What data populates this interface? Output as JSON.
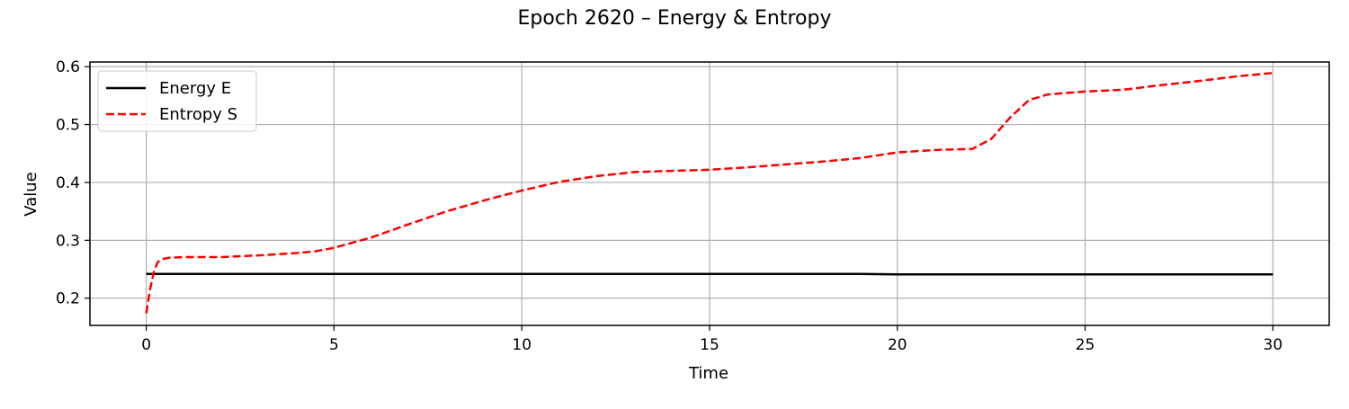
{
  "chart_data": {
    "type": "line",
    "title": "Epoch 2620 – Energy & Entropy",
    "xlabel": "Time",
    "ylabel": "Value",
    "xlim": [
      -1.5,
      31.5
    ],
    "ylim": [
      0.153,
      0.608
    ],
    "xticks": [
      0,
      5,
      10,
      15,
      20,
      25,
      30
    ],
    "xtick_labels": [
      "0",
      "5",
      "10",
      "15",
      "20",
      "25",
      "30"
    ],
    "yticks": [
      0.2,
      0.3,
      0.4,
      0.5,
      0.6
    ],
    "ytick_labels": [
      "0.2",
      "0.3",
      "0.4",
      "0.5",
      "0.6"
    ],
    "grid": true,
    "legend_position": "top-left",
    "series": [
      {
        "name": "Energy E",
        "color": "#000000",
        "style": "solid",
        "x": [
          0,
          5,
          10,
          15,
          19,
          20,
          25,
          30
        ],
        "y": [
          0.242,
          0.242,
          0.242,
          0.242,
          0.242,
          0.241,
          0.241,
          0.241
        ]
      },
      {
        "name": "Entropy S",
        "color": "#ff0000",
        "style": "dashed",
        "x": [
          0,
          0.1,
          0.2,
          0.3,
          0.4,
          0.6,
          1,
          2,
          3,
          4,
          4.5,
          5,
          6,
          7,
          8,
          9,
          10,
          11,
          12,
          13,
          14,
          15,
          16,
          17,
          18,
          19,
          20,
          21,
          22,
          22.5,
          23,
          23.5,
          24,
          25,
          26,
          27,
          28,
          29,
          30
        ],
        "y": [
          0.174,
          0.215,
          0.245,
          0.262,
          0.267,
          0.27,
          0.271,
          0.271,
          0.274,
          0.278,
          0.281,
          0.287,
          0.305,
          0.328,
          0.35,
          0.369,
          0.386,
          0.401,
          0.411,
          0.418,
          0.42,
          0.422,
          0.426,
          0.431,
          0.436,
          0.442,
          0.452,
          0.456,
          0.458,
          0.475,
          0.512,
          0.542,
          0.552,
          0.557,
          0.56,
          0.568,
          0.575,
          0.583,
          0.589
        ]
      }
    ]
  }
}
